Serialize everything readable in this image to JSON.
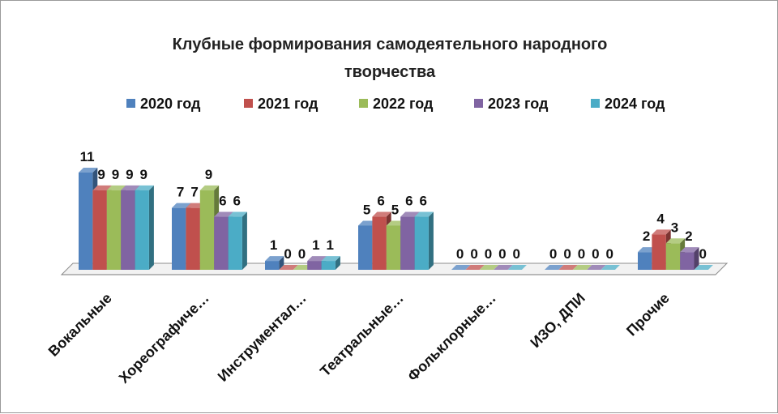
{
  "chart_data": {
    "type": "bar",
    "title_lines": [
      "Клубные формирования самодеятельного народного",
      "творчества"
    ],
    "categories": [
      "Вокальные",
      "Хореографиче…",
      "Инструментал…",
      "Театральные…",
      "Фольклорные…",
      "ИЗО, ДПИ",
      "Прочие"
    ],
    "series": [
      {
        "name": "2020 год",
        "color": "#4F81BD",
        "values": [
          11,
          7,
          1,
          5,
          0,
          0,
          2
        ]
      },
      {
        "name": "2021 год",
        "color": "#C0504D",
        "values": [
          9,
          7,
          0,
          6,
          0,
          0,
          4
        ]
      },
      {
        "name": "2022 год",
        "color": "#9BBB59",
        "values": [
          9,
          9,
          0,
          5,
          0,
          0,
          3
        ]
      },
      {
        "name": "2023 год",
        "color": "#8064A2",
        "values": [
          9,
          6,
          1,
          6,
          0,
          0,
          2
        ]
      },
      {
        "name": "2024 год",
        "color": "#4BACC6",
        "values": [
          9,
          6,
          1,
          6,
          0,
          0,
          0
        ]
      }
    ],
    "ylim": [
      0,
      11
    ],
    "legend_position": "top",
    "grid": false
  }
}
